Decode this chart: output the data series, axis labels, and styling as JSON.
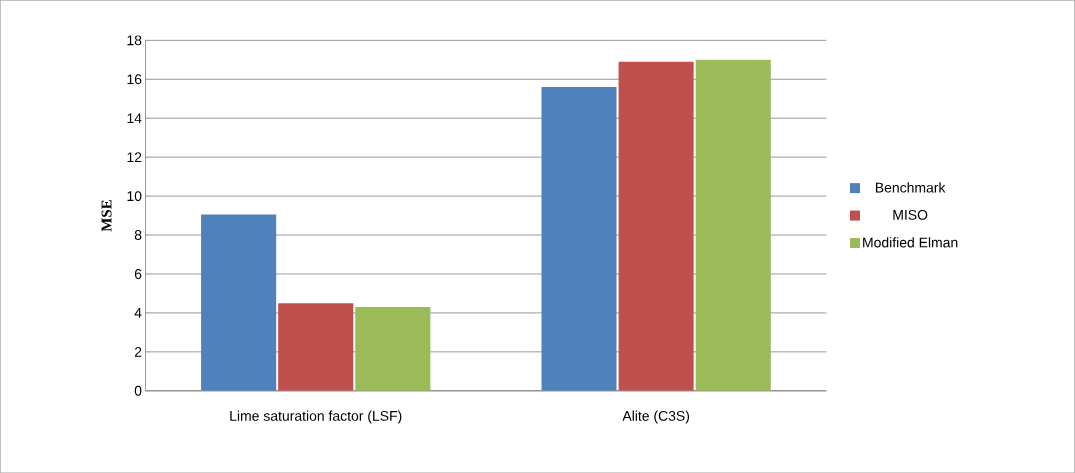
{
  "chart_data": {
    "type": "bar",
    "ylabel": "MSE",
    "categories": [
      "Lime saturation factor (LSF)",
      "Alite (C3S)"
    ],
    "series": [
      {
        "name": "Benchmark",
        "color": "#4f81bd",
        "values": [
          9.05,
          15.6
        ]
      },
      {
        "name": "MISO",
        "color": "#c0504d",
        "values": [
          4.5,
          16.9
        ]
      },
      {
        "name": "Modified Elman",
        "color": "#9bbb59",
        "values": [
          4.3,
          17.0
        ]
      }
    ],
    "ylim": [
      0,
      18
    ],
    "yticks": [
      0,
      2,
      4,
      6,
      8,
      10,
      12,
      14,
      16,
      18
    ],
    "grid": "y",
    "legend": "right"
  }
}
